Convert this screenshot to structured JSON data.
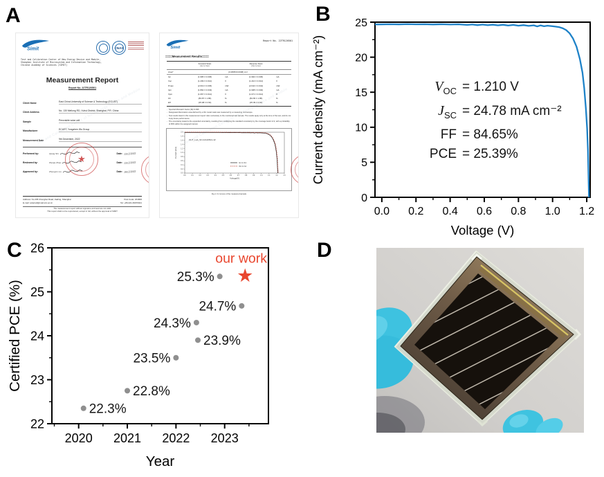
{
  "panels": {
    "a": "A",
    "b": "B",
    "c": "C",
    "d": "D"
  },
  "document": {
    "logo_text": "Simit",
    "cnas_label": "CNAS",
    "org_lines": [
      "Test and Calibration Center of New Energy Device and Module,",
      "Shanghai Institute of Microsystem and Information Technology,",
      "Chinese Academy of Sciences (SIMIT)"
    ],
    "watermark": "Test and Calibration Center of New Energy Device and Module",
    "title": "Measurement Report",
    "report_no": "Report No. 22TR120501",
    "report_no_header": "Report No. 22TR120501",
    "fields": [
      {
        "label": "Client Name",
        "value": "East China University of Science & Technology (ECUST)"
      },
      {
        "label": "Client Address",
        "value": "No. 130 Meilong RD, Xuhui District, Shanghai, P.R. China"
      },
      {
        "label": "Sample",
        "value": "Perovskite solar cell"
      },
      {
        "label": "Manufacturer",
        "value": "ECUST, Yongzhen Wu Group"
      },
      {
        "label": "Measurement Date",
        "value": "9th December, 2022"
      }
    ],
    "signatures": [
      {
        "label": "Performed by:",
        "name": "Qiang Shi",
        "date_label": "Date:",
        "date": "13/12/2022"
      },
      {
        "label": "Reviewed by:",
        "name": "Wenjie Zhao",
        "date_label": "Date:",
        "date": "13/12/2022"
      },
      {
        "label": "Approved by:",
        "name": "Zhengxin Liu",
        "date_label": "Date:",
        "date": "19/12/2022"
      }
    ],
    "footer": {
      "address": "Address: No 235 Chengbei Road, Jiading, Shanghai",
      "post_code": "Post Code: 201800",
      "email": "E-mail: solarcell@mail.sim.ac.cn",
      "tel": "Tel: +86-021-69976021",
      "disclaimer1": "The measurement report without signature and seal are not valid.",
      "disclaimer2": "This report shall not be reproduced, except in full, without the approval of SIMIT"
    },
    "results_heading": "====Measurement Results====",
    "results_table": {
      "fwd_header": "Forward Scan",
      "fwd_sub": "(Isc to Voc)",
      "rev_header": "Reverse Scan",
      "rev_sub": "(Voc to Isc)",
      "area_label": "Area*",
      "area_value": "(0.0805±0.0008) cm²",
      "rows": [
        {
          "p": "Isc",
          "f": "(1.995 ± 0.036)",
          "fu": "mA",
          "r": "(1.994 ± 0.036)",
          "ru": "mA"
        },
        {
          "p": "Voc",
          "f": "(1.209 ± 0.012)",
          "fu": "V",
          "r": "(1.210 ± 0.012)",
          "ru": "V"
        },
        {
          "p": "Pmax",
          "f": "(2.019 ± 0.045)",
          "fu": "mW",
          "r": "(2.044 ± 0.044)",
          "ru": "mW"
        },
        {
          "p": "Ipm",
          "f": "(1.892 ± 0.043)",
          "fu": "mA",
          "r": "(1.908 ± 0.040)",
          "ru": "mA"
        },
        {
          "p": "Vpm",
          "f": "(1.067 ± 0.014)",
          "fu": "V",
          "r": "(1.071 ± 0.014)",
          "ru": "V"
        },
        {
          "p": "FF",
          "f": "(83.87 ± 1.86)",
          "fu": "%",
          "r": "(84.65 ± 1.85)",
          "ru": "%"
        },
        {
          "p": "Eff",
          "f": "(25.08 ± 0.63)",
          "fu": "%",
          "r": "(25.39 ± 0.61)",
          "ru": "%"
        }
      ]
    },
    "notes": [
      "Spectral Mismatch Factor (M)=0.995",
      "Designated illumination area defined by a thin metal mask was measured by a measuring microscope.",
      "Test results listed in this measurement report refer exclusively to the mentioned test sample. The results apply only at the time of the test, and do not imply future performance.",
      "The uncertainty stated is the expanded uncertainty, resulting from multiplying the standard uncertainty by the coverage factor k=2, with a probability of 95% within the assigned interval."
    ],
    "inset": {
      "device_label": "OUT_Lab_SN 22120501-1#",
      "ylabel": "Current [mA]",
      "xlabel": "Voltage[V]",
      "legend": [
        "Isc to Voc",
        "Voc to Isc"
      ],
      "caption": "Fig.1 I-V curves of the measured sample",
      "yticks": [
        "0.0",
        "0.2",
        "0.4",
        "0.6",
        "0.8",
        "1.0",
        "1.2",
        "1.4",
        "1.6",
        "1.8",
        "2.0"
      ],
      "xticks": [
        "0.0",
        "0.1",
        "0.2",
        "0.3",
        "0.4",
        "0.5",
        "0.6",
        "0.7",
        "0.8",
        "0.9",
        "1.0",
        "1.1",
        "1.2",
        "1.3"
      ]
    }
  },
  "chart_data": [
    {
      "id": "jv",
      "type": "line",
      "xlabel": "Voltage (V)",
      "ylabel": "Current density (mA cm⁻²)",
      "xlim": [
        -0.04,
        1.22
      ],
      "ylim": [
        0,
        25
      ],
      "xticks": [
        0.0,
        0.2,
        0.4,
        0.6,
        0.8,
        1.0,
        1.2
      ],
      "xtick_labels": [
        "0.0",
        "0.2",
        "0.4",
        "0.6",
        "0.8",
        "1.0",
        "1.2"
      ],
      "xminor": [
        0.1,
        0.3,
        0.5,
        0.7,
        0.9,
        1.1
      ],
      "yticks": [
        0,
        5,
        10,
        15,
        20,
        25
      ],
      "ytick_labels": [
        "0",
        "5",
        "10",
        "15",
        "20",
        "25"
      ],
      "yminor": [
        2.5,
        7.5,
        12.5,
        17.5,
        22.5
      ],
      "line_color": "#1e82c8",
      "legend_position": "none",
      "grid": false,
      "points": [
        [
          -0.04,
          24.67
        ],
        [
          0.0,
          24.68
        ],
        [
          0.05,
          24.7
        ],
        [
          0.1,
          24.68
        ],
        [
          0.15,
          24.71
        ],
        [
          0.2,
          24.69
        ],
        [
          0.25,
          24.7
        ],
        [
          0.3,
          24.67
        ],
        [
          0.35,
          24.7
        ],
        [
          0.4,
          24.66
        ],
        [
          0.45,
          24.69
        ],
        [
          0.5,
          24.6
        ],
        [
          0.53,
          24.66
        ],
        [
          0.56,
          24.58
        ],
        [
          0.59,
          24.65
        ],
        [
          0.62,
          24.57
        ],
        [
          0.65,
          24.63
        ],
        [
          0.68,
          24.55
        ],
        [
          0.71,
          24.62
        ],
        [
          0.74,
          24.52
        ],
        [
          0.77,
          24.6
        ],
        [
          0.8,
          24.5
        ],
        [
          0.83,
          24.58
        ],
        [
          0.86,
          24.47
        ],
        [
          0.89,
          24.55
        ],
        [
          0.91,
          24.4
        ],
        [
          0.93,
          24.54
        ],
        [
          0.95,
          24.42
        ],
        [
          0.97,
          24.5
        ],
        [
          1.0,
          24.42
        ],
        [
          1.02,
          24.36
        ],
        [
          1.04,
          24.28
        ],
        [
          1.06,
          24.12
        ],
        [
          1.08,
          23.86
        ],
        [
          1.1,
          23.4
        ],
        [
          1.12,
          22.65
        ],
        [
          1.14,
          21.5
        ],
        [
          1.16,
          19.7
        ],
        [
          1.175,
          17.8
        ],
        [
          1.185,
          15.6
        ],
        [
          1.195,
          12.7
        ],
        [
          1.202,
          9.8
        ],
        [
          1.207,
          6.8
        ],
        [
          1.21,
          3.6
        ],
        [
          1.213,
          0.0
        ]
      ],
      "annotations": [
        {
          "name": "V",
          "sub": "OC",
          "italic": true,
          "value": "= 1.210 V"
        },
        {
          "name": "J",
          "sub": "SC",
          "italic": true,
          "value": "= 24.78 mA cm⁻²"
        },
        {
          "name": "FF",
          "sub": "",
          "italic": false,
          "value": "= 84.65%"
        },
        {
          "name": "PCE",
          "sub": "",
          "italic": false,
          "value": "= 25.39%"
        }
      ]
    },
    {
      "id": "pce",
      "type": "scatter",
      "xlabel": "Year",
      "ylabel": "Certified PCE (%)",
      "xlim": [
        2019.45,
        2023.9
      ],
      "ylim": [
        22,
        26
      ],
      "xticks": [
        2020,
        2021,
        2022,
        2023
      ],
      "xtick_labels": [
        "2020",
        "2021",
        "2022",
        "2023"
      ],
      "xminor": [
        2019.5,
        2020.5,
        2021.5,
        2022.5,
        2023.5
      ],
      "yticks": [
        22,
        23,
        24,
        25,
        26
      ],
      "ytick_labels": [
        "22",
        "23",
        "24",
        "25",
        "26"
      ],
      "yminor": [
        22.5,
        23.5,
        24.5,
        25.5
      ],
      "dot_color": "#8f8f8f",
      "grid": false,
      "points": [
        {
          "year": 2020.1,
          "pce": 22.35,
          "label": "22.3%",
          "side": "right"
        },
        {
          "year": 2021.0,
          "pce": 22.75,
          "label": "22.8%",
          "side": "right"
        },
        {
          "year": 2022.0,
          "pce": 23.5,
          "label": "23.5%",
          "side": "left"
        },
        {
          "year": 2022.45,
          "pce": 23.9,
          "label": "23.9%",
          "side": "right"
        },
        {
          "year": 2022.42,
          "pce": 24.3,
          "label": "24.3%",
          "side": "left"
        },
        {
          "year": 2023.35,
          "pce": 24.68,
          "label": "24.7%",
          "side": "left"
        },
        {
          "year": 2022.9,
          "pce": 25.35,
          "label": "25.3%",
          "side": "left"
        }
      ],
      "star": {
        "year": 2023.42,
        "pce": 25.38,
        "label": "our work",
        "color": "#e9472f"
      }
    }
  ]
}
